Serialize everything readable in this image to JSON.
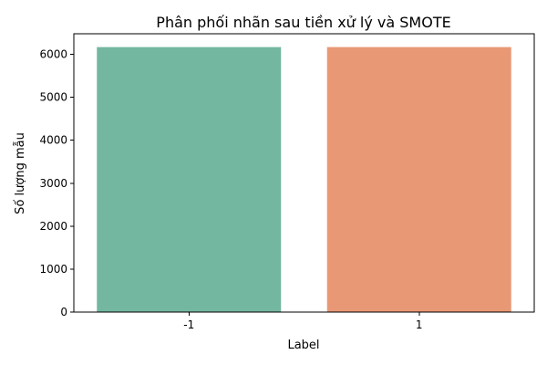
{
  "chart_data": {
    "type": "bar",
    "title": "Phân phối nhãn sau tiền xử lý và SMOTE",
    "xlabel": "Label",
    "ylabel": "Số lượng mẫu",
    "categories": [
      "-1",
      "1"
    ],
    "values": [
      6170,
      6170
    ],
    "colors": [
      "#74b7a0",
      "#e99875"
    ],
    "ylim": [
      0,
      6480
    ],
    "yticks": [
      0,
      1000,
      2000,
      3000,
      4000,
      5000,
      6000
    ],
    "ytick_labels": [
      "0",
      "1000",
      "2000",
      "3000",
      "4000",
      "5000",
      "6000"
    ],
    "grid": false,
    "legend": "none"
  }
}
